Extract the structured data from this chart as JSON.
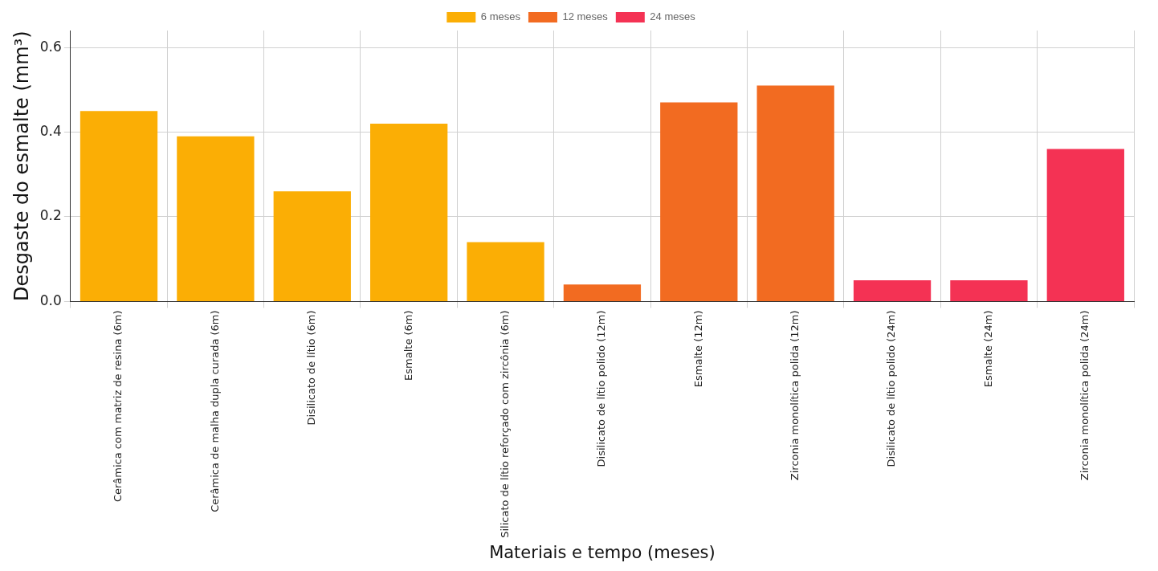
{
  "chart_data": {
    "type": "bar",
    "xlabel": "Materiais e tempo (meses)",
    "ylabel": "Desgaste do esmalte (mm³)",
    "categories": [
      "Cerâmica com matriz de resina (6m)",
      "Cerâmica de malha dupla curada (6m)",
      "Disilicato de lítio (6m)",
      "Esmalte (6m)",
      "Silicato de lítio reforçado com zircônia (6m)",
      "Disilicato de lítio polido (12m)",
      "Esmalte (12m)",
      "Zirconia monolítica polida (12m)",
      "Disilicato de lítio polido (24m)",
      "Esmalte (24m)",
      "Zirconia monolítica polida (24m)"
    ],
    "series": [
      {
        "name": "6 meses",
        "color": "#fbae05",
        "values": [
          0.45,
          0.39,
          0.26,
          0.42,
          0.14,
          null,
          null,
          null,
          null,
          null,
          null
        ]
      },
      {
        "name": "12 meses",
        "color": "#f26b21",
        "values": [
          null,
          null,
          null,
          null,
          null,
          0.04,
          0.47,
          0.51,
          null,
          null,
          null
        ]
      },
      {
        "name": "24 meses",
        "color": "#f43254",
        "values": [
          null,
          null,
          null,
          null,
          null,
          null,
          null,
          null,
          0.05,
          0.05,
          0.36
        ]
      }
    ],
    "ylim": [
      0,
      0.64
    ],
    "yticks": [
      {
        "value": 0,
        "label": "0.0"
      },
      0.2,
      0.4,
      0.6
    ],
    "grid": true,
    "legend": "top"
  }
}
